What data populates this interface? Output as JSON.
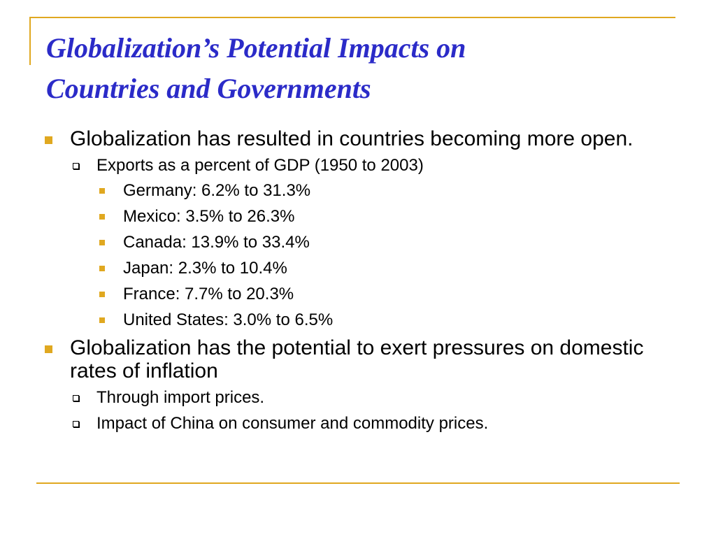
{
  "title": {
    "line1": "Globalization’s Potential Impacts on",
    "line2": "Countries and Governments"
  },
  "colors": {
    "title": "#2b2bc8",
    "accent": "#e0a820",
    "text": "#000000"
  },
  "bullets": [
    {
      "text": "Globalization has resulted in countries becoming more open.",
      "sub": [
        {
          "text": "Exports as a percent of GDP (1950 to 2003)",
          "items": [
            "Germany: 6.2% to 31.3%",
            "Mexico: 3.5% to 26.3%",
            "Canada: 13.9% to 33.4%",
            "Japan: 2.3% to 10.4%",
            "France: 7.7% to 20.3%",
            "United States: 3.0% to 6.5%"
          ]
        }
      ]
    },
    {
      "text": "Globalization has the potential to exert pressures on domestic rates of inflation",
      "sub": [
        {
          "text": "Through import prices."
        },
        {
          "text": "Impact of China on consumer and commodity prices."
        }
      ]
    }
  ]
}
